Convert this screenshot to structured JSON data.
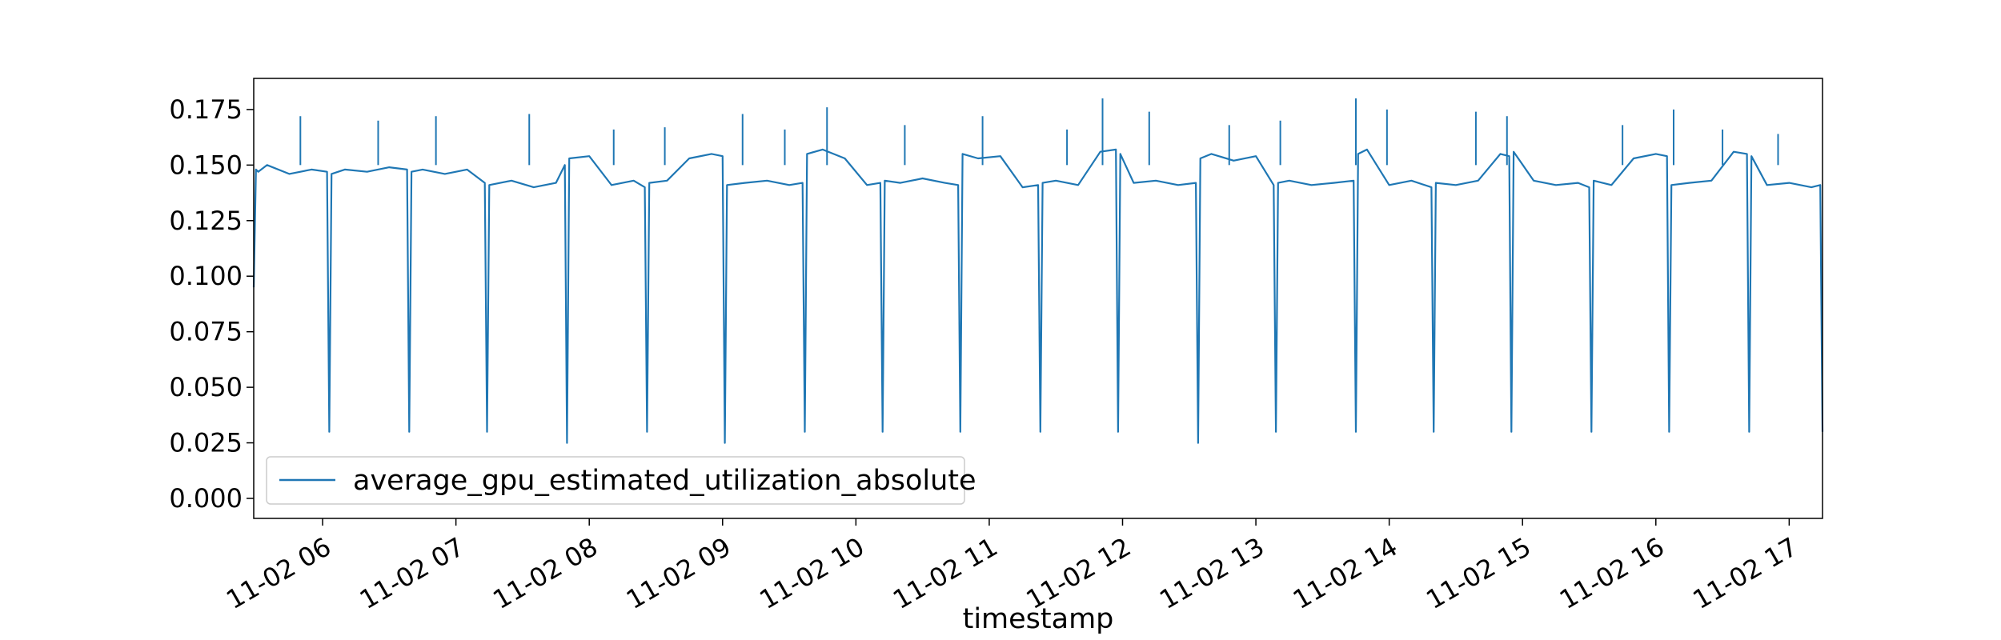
{
  "chart_data": {
    "type": "line",
    "title": "",
    "xlabel": "timestamp",
    "ylabel": "",
    "ylim": [
      -0.009,
      0.189
    ],
    "xlim": [
      "11-02 05:29",
      "11-02 17:15"
    ],
    "yticks": [
      "0.000",
      "0.025",
      "0.050",
      "0.075",
      "0.100",
      "0.125",
      "0.150",
      "0.175"
    ],
    "xticks": [
      "11-02 06",
      "11-02 07",
      "11-02 08",
      "11-02 09",
      "11-02 10",
      "11-02 11",
      "11-02 12",
      "11-02 13",
      "11-02 14",
      "11-02 15",
      "11-02 16",
      "11-02 17"
    ],
    "legend": {
      "location": "lower-left",
      "entries": [
        "average_gpu_estimated_utilization_absolute"
      ]
    },
    "grid": false,
    "series": [
      {
        "name": "average_gpu_estimated_utilization_absolute",
        "color": "#1f77b4",
        "x_times": [
          "05:29",
          "05:30",
          "05:31",
          "05:35",
          "05:45",
          "05:55",
          "06:02",
          "06:03",
          "06:04",
          "06:10",
          "06:20",
          "06:30",
          "06:38",
          "06:39",
          "06:40",
          "06:45",
          "06:55",
          "07:05",
          "07:13",
          "07:14",
          "07:15",
          "07:25",
          "07:35",
          "07:45",
          "07:49",
          "07:50",
          "07:51",
          "08:00",
          "08:10",
          "08:20",
          "08:25",
          "08:26",
          "08:27",
          "08:35",
          "08:45",
          "08:55",
          "09:00",
          "09:01",
          "09:02",
          "09:10",
          "09:20",
          "09:30",
          "09:36",
          "09:37",
          "09:38",
          "09:45",
          "09:55",
          "10:05",
          "10:11",
          "10:12",
          "10:13",
          "10:20",
          "10:30",
          "10:40",
          "10:46",
          "10:47",
          "10:48",
          "10:55",
          "11:05",
          "11:15",
          "11:22",
          "11:23",
          "11:24",
          "11:30",
          "11:40",
          "11:50",
          "11:57",
          "11:58",
          "11:59",
          "12:05",
          "12:15",
          "12:25",
          "12:33",
          "12:34",
          "12:35",
          "12:40",
          "12:50",
          "13:00",
          "13:08",
          "13:09",
          "13:10",
          "13:15",
          "13:25",
          "13:35",
          "13:44",
          "13:45",
          "13:46",
          "13:50",
          "14:00",
          "14:10",
          "14:19",
          "14:20",
          "14:21",
          "14:30",
          "14:40",
          "14:50",
          "14:54",
          "14:55",
          "14:56",
          "15:05",
          "15:15",
          "15:25",
          "15:30",
          "15:31",
          "15:32",
          "15:40",
          "15:50",
          "16:00",
          "16:05",
          "16:06",
          "16:07",
          "16:15",
          "16:25",
          "16:35",
          "16:41",
          "16:42",
          "16:43",
          "16:50",
          "17:00",
          "17:10",
          "17:14",
          "17:15"
        ],
        "values": [
          0.095,
          0.148,
          0.147,
          0.15,
          0.146,
          0.148,
          0.147,
          0.03,
          0.146,
          0.148,
          0.147,
          0.149,
          0.148,
          0.03,
          0.147,
          0.148,
          0.146,
          0.148,
          0.142,
          0.03,
          0.141,
          0.143,
          0.14,
          0.142,
          0.15,
          0.025,
          0.153,
          0.154,
          0.141,
          0.143,
          0.14,
          0.03,
          0.142,
          0.143,
          0.153,
          0.155,
          0.154,
          0.025,
          0.141,
          0.142,
          0.143,
          0.141,
          0.142,
          0.03,
          0.155,
          0.157,
          0.153,
          0.141,
          0.142,
          0.03,
          0.143,
          0.142,
          0.144,
          0.142,
          0.141,
          0.03,
          0.155,
          0.153,
          0.154,
          0.14,
          0.141,
          0.03,
          0.142,
          0.143,
          0.141,
          0.156,
          0.157,
          0.03,
          0.155,
          0.142,
          0.143,
          0.141,
          0.142,
          0.025,
          0.153,
          0.155,
          0.152,
          0.154,
          0.141,
          0.03,
          0.142,
          0.143,
          0.141,
          0.142,
          0.143,
          0.03,
          0.155,
          0.157,
          0.141,
          0.143,
          0.14,
          0.03,
          0.142,
          0.141,
          0.143,
          0.155,
          0.154,
          0.03,
          0.156,
          0.143,
          0.141,
          0.142,
          0.14,
          0.03,
          0.143,
          0.141,
          0.153,
          0.155,
          0.154,
          0.03,
          0.141,
          0.142,
          0.143,
          0.156,
          0.155,
          0.03,
          0.154,
          0.141,
          0.142,
          0.14,
          0.141,
          0.03
        ],
        "spikes": [
          {
            "t": "05:50",
            "v": 0.172
          },
          {
            "t": "06:25",
            "v": 0.17
          },
          {
            "t": "06:51",
            "v": 0.172
          },
          {
            "t": "07:33",
            "v": 0.173
          },
          {
            "t": "08:11",
            "v": 0.166
          },
          {
            "t": "08:34",
            "v": 0.167
          },
          {
            "t": "09:09",
            "v": 0.173
          },
          {
            "t": "09:28",
            "v": 0.166
          },
          {
            "t": "09:47",
            "v": 0.176
          },
          {
            "t": "10:22",
            "v": 0.168
          },
          {
            "t": "10:57",
            "v": 0.172
          },
          {
            "t": "11:35",
            "v": 0.166
          },
          {
            "t": "11:51",
            "v": 0.18
          },
          {
            "t": "12:12",
            "v": 0.174
          },
          {
            "t": "12:48",
            "v": 0.168
          },
          {
            "t": "13:11",
            "v": 0.17
          },
          {
            "t": "13:45",
            "v": 0.18
          },
          {
            "t": "13:59",
            "v": 0.175
          },
          {
            "t": "14:39",
            "v": 0.174
          },
          {
            "t": "14:53",
            "v": 0.172
          },
          {
            "t": "15:45",
            "v": 0.168
          },
          {
            "t": "16:08",
            "v": 0.175
          },
          {
            "t": "16:30",
            "v": 0.166
          },
          {
            "t": "16:55",
            "v": 0.164
          }
        ]
      }
    ]
  }
}
